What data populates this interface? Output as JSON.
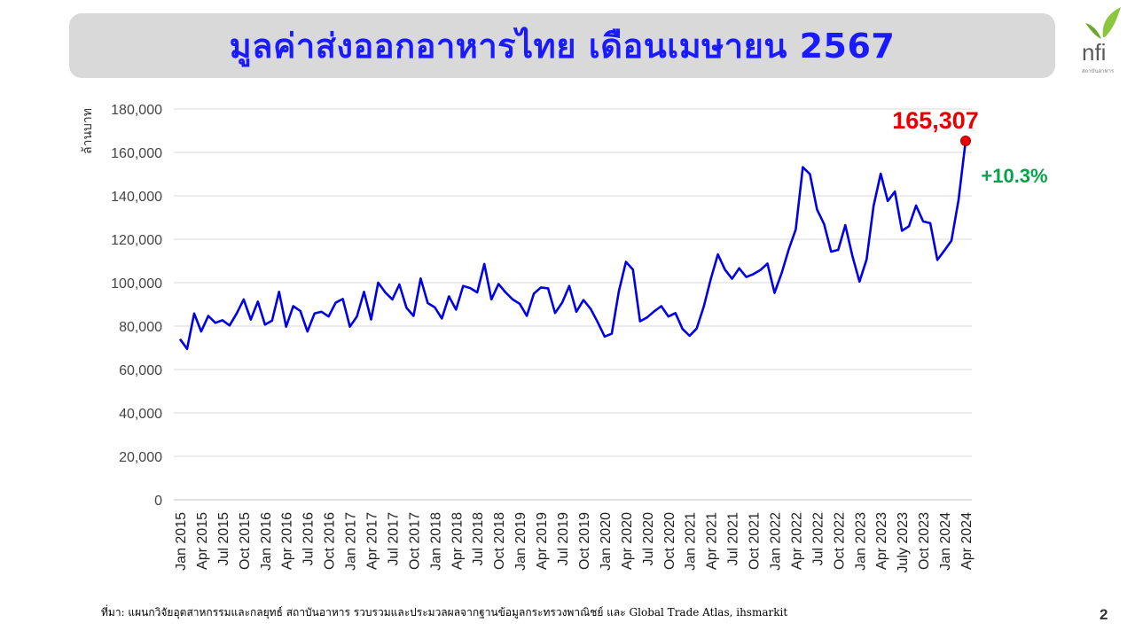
{
  "title": "มูลค่าส่งออกอาหารไทย เดือนเมษายน 2567",
  "logo": {
    "text": "nfi",
    "subtext": "สถาบันอาหาร"
  },
  "colors": {
    "line": "#0000e6",
    "highlight": "#e60000",
    "growth": "#0aa14a",
    "title": "#1a1aff"
  },
  "chart_data": {
    "type": "line",
    "ylabel": "ล้านบาท",
    "ylim": [
      0,
      180000
    ],
    "yticks": [
      0,
      20000,
      40000,
      60000,
      80000,
      100000,
      120000,
      140000,
      160000,
      180000
    ],
    "grid": true,
    "x_ticks": [
      "Jan 2015",
      "Apr 2015",
      "Jul 2015",
      "Oct 2015",
      "Jan 2016",
      "Apr 2016",
      "Jul 2016",
      "Oct 2016",
      "Jan 2017",
      "Apr 2017",
      "Jul 2017",
      "Oct 2017",
      "Jan 2018",
      "Apr 2018",
      "Jul 2018",
      "Oct 2018",
      "Jan 2019",
      "Apr 2019",
      "Jul 2019",
      "Oct 2019",
      "Jan 2020",
      "Apr 2020",
      "Jul 2020",
      "Oct 2020",
      "Jan 2021",
      "Apr 2021",
      "Jul 2021",
      "Oct 2021",
      "Jan 2022",
      "Apr 2022",
      "Jul 2022",
      "Oct 2022",
      "Jan 2023",
      "Apr 2023",
      "July 2023",
      "Oct 2023",
      "Jan 2024",
      "Apr 2024"
    ],
    "series": [
      {
        "values": [
          74000,
          69500,
          85800,
          77500,
          84700,
          81500,
          82700,
          80300,
          85800,
          92300,
          83000,
          91300,
          80700,
          82500,
          95800,
          79700,
          89200,
          87000,
          77500,
          85800,
          86600,
          84400,
          90800,
          92500,
          79700,
          84400,
          95800,
          83000,
          100000,
          95500,
          92300,
          99200,
          88400,
          84700,
          101900,
          90600,
          88600,
          83500,
          93700,
          87600,
          98500,
          97500,
          95500,
          108600,
          92300,
          99400,
          95500,
          92300,
          90300,
          84700,
          95000,
          97800,
          97400,
          86000,
          90800,
          98500,
          86600,
          92000,
          88000,
          81900,
          75200,
          76500,
          96000,
          109600,
          106000,
          82200,
          84000,
          86800,
          89200,
          84400,
          86000,
          78700,
          75500,
          78900,
          89000,
          101700,
          113000,
          106000,
          101800,
          106600,
          102600,
          103900,
          105800,
          108800,
          95300,
          104400,
          115300,
          124500,
          153200,
          150000,
          133700,
          127000,
          114300,
          115100,
          126500,
          112300,
          100500,
          110700,
          135400,
          150200,
          137600,
          142000,
          123900,
          126000,
          135500,
          128200,
          127400,
          110500,
          114800,
          119400,
          138100,
          165307
        ]
      }
    ],
    "highlight": {
      "label": "165,307",
      "growth": "+10.3%"
    }
  },
  "footnote": "ที่มา: แผนกวิจัยอุตสาหกรรมและกลยุทธ์   สถาบันอาหาร รวบรวมและประมวลผลจากฐานข้อมูลกระทรวงพาณิชย์  และ Global Trade Atlas, ihsmarkit",
  "page_number": "2"
}
